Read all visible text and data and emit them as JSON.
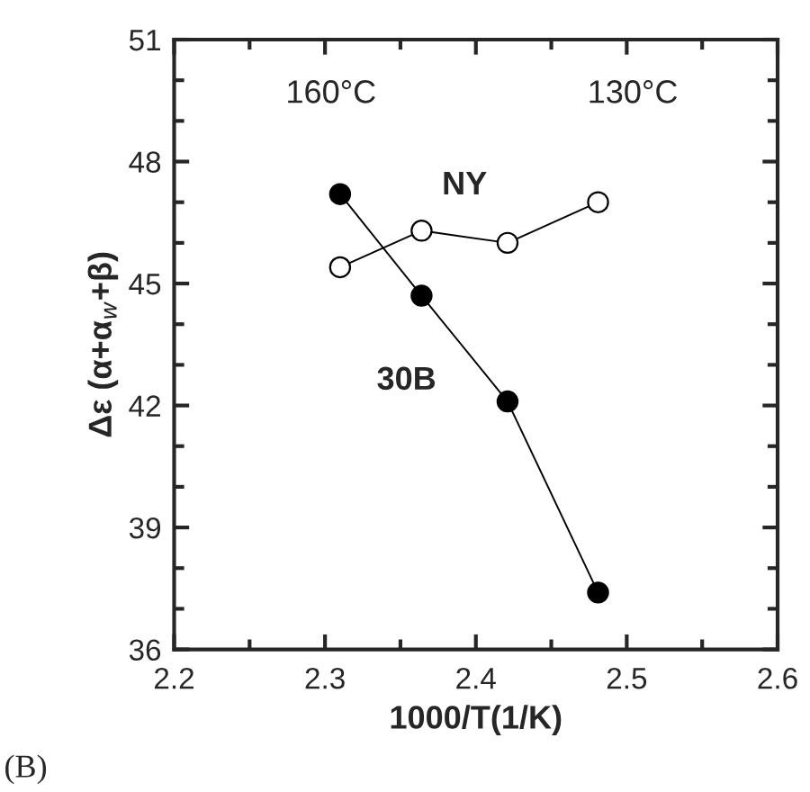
{
  "chart_data": {
    "type": "line",
    "xlabel": "1000/T(1/K)",
    "ylabel": "Δε (α+α$_{w}$+β)",
    "xlim": [
      2.2,
      2.6
    ],
    "xticks": [
      2.2,
      2.3,
      2.4,
      2.5,
      2.6
    ],
    "ylim": [
      36,
      51
    ],
    "yticks": [
      36,
      39,
      42,
      45,
      48,
      51
    ],
    "marker": "circle",
    "line_style": "solid",
    "grid": false,
    "legend": false,
    "series": [
      {
        "name": "30B",
        "color": "#000000",
        "x": [
          2.31,
          2.364,
          2.421,
          2.481
        ],
        "values": [
          47.2,
          44.7,
          42.1,
          37.4
        ]
      },
      {
        "name": "NY",
        "color": "#ffffff",
        "x": [
          2.31,
          2.364,
          2.421,
          2.481
        ],
        "values": [
          45.4,
          46.3,
          46.0,
          47.0
        ]
      }
    ],
    "annotations": [
      "160°C",
      "130°C",
      "(B)"
    ]
  }
}
